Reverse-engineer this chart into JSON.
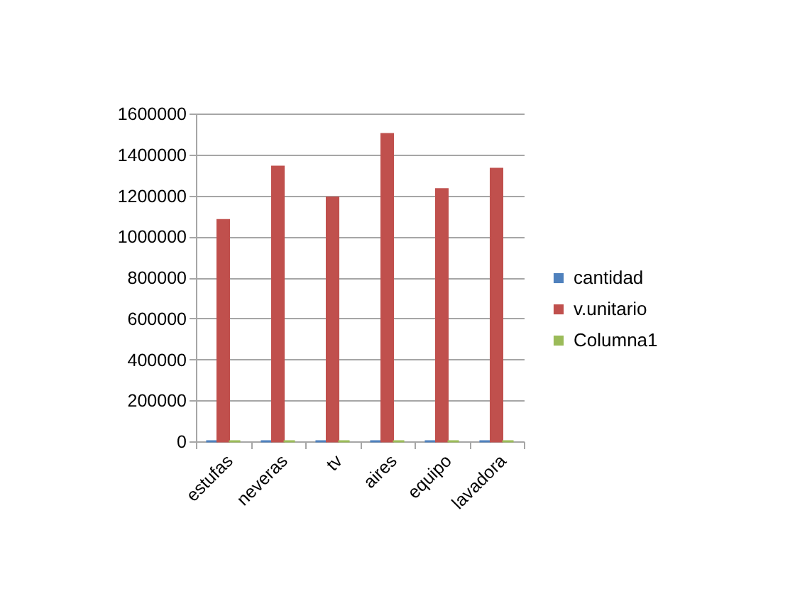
{
  "chart_data": {
    "type": "bar",
    "categories": [
      "estufas",
      "neveras",
      "tv",
      "aires",
      "equipo",
      "lavadora"
    ],
    "series": [
      {
        "name": "cantidad",
        "color": "#4f81bd",
        "values": [
          0,
          0,
          0,
          0,
          0,
          0
        ]
      },
      {
        "name": "v.unitario",
        "color": "#c0504d",
        "values": [
          1080000,
          1340000,
          1190000,
          1500000,
          1230000,
          1330000
        ]
      },
      {
        "name": "Columna1",
        "color": "#9bbb59",
        "values": [
          0,
          0,
          0,
          0,
          0,
          0
        ]
      }
    ],
    "ylim": [
      0,
      1600000
    ],
    "yticks": [
      0,
      200000,
      400000,
      600000,
      800000,
      1000000,
      1200000,
      1400000,
      1600000
    ],
    "grid": "y",
    "legend": "right"
  }
}
